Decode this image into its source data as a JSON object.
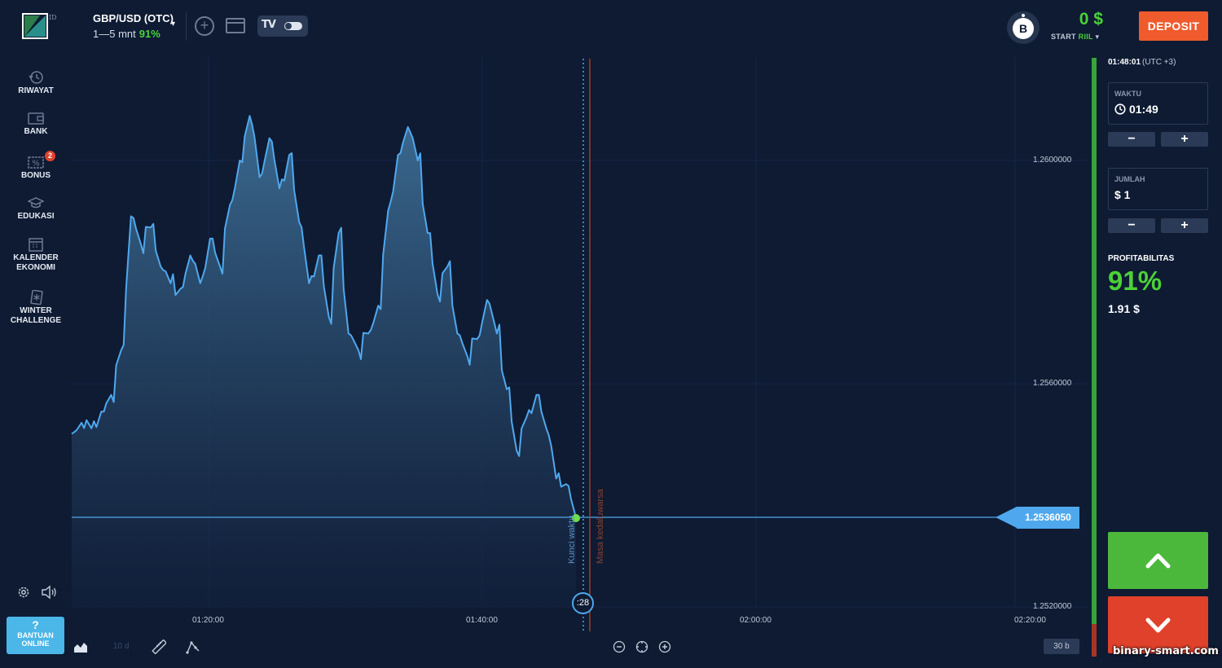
{
  "header": {
    "logo_suffix": "ID",
    "asset_name": "GBP/USD (OTC)",
    "asset_timeframe": "1—5 mnt",
    "asset_payout": "91%",
    "tv_logo": "TV",
    "balance_avatar": "B",
    "balance_amount": "0 $",
    "balance_account_prefix": "START",
    "balance_account_type": "RIIL",
    "deposit_label": "DEPOSIT"
  },
  "sidebar": {
    "items": [
      {
        "label": "RIWAYAT",
        "icon": "history-icon"
      },
      {
        "label": "BANK",
        "icon": "wallet-icon"
      },
      {
        "label": "BONUS",
        "icon": "percent-icon",
        "badge": "2"
      },
      {
        "label": "EDUKASI",
        "icon": "graduation-cap-icon"
      },
      {
        "label": "KALENDER EKONOMI",
        "icon": "calendar-icon"
      },
      {
        "label": "WINTER CHALLENGE",
        "icon": "snowflake-card-icon"
      }
    ],
    "help_symbol": "?",
    "help_label_1": "BANTUAN",
    "help_label_2": "ONLINE"
  },
  "chart": {
    "price_levels": [
      "1.2600000",
      "1.2560000",
      "1.2520000"
    ],
    "time_labels": [
      "01:20:00",
      "01:40:00",
      "02:00:00",
      "02:20:00"
    ],
    "current_price": "1.2536050",
    "timer": ":28",
    "lock_label": "Kunci waktu",
    "expiry_label": "Masa kedaluwarsa",
    "timeframe_label": "10 d",
    "candle_period": "30 b",
    "line_color": "#4fa8ee",
    "price_line_color": "#4fa8ee",
    "expiry_line_color": "#c0442a"
  },
  "chart_data": {
    "type": "area",
    "ylim": [
      1.252,
      1.2615
    ],
    "y_ticks": [
      1.26,
      1.256,
      1.252
    ],
    "x_ticks": [
      "01:20:00",
      "01:40:00",
      "02:00:00",
      "02:20:00"
    ],
    "series": [
      {
        "values": [
          1.2551,
          1.2553,
          1.2552,
          1.2555,
          1.2558,
          1.2566,
          1.259,
          1.2585,
          1.2588,
          1.2581,
          1.2578,
          1.2577,
          1.2583,
          1.2578,
          1.2586,
          1.2581,
          1.2592,
          1.26,
          1.2608,
          1.2597,
          1.2604,
          1.2595,
          1.2601,
          1.2589,
          1.2578,
          1.2583,
          1.2572,
          1.2587,
          1.2569,
          1.2566,
          1.2569,
          1.2574,
          1.2591,
          1.2601,
          1.2606,
          1.26,
          1.2587,
          1.2576,
          1.2581,
          1.2569,
          1.2565,
          1.2568,
          1.2575,
          1.2569,
          1.2559,
          1.2548,
          1.2554,
          1.2558,
          1.2552,
          1.2543,
          1.2542,
          1.2536
        ]
      }
    ]
  },
  "toolbar": {
    "chart_type_icon": "area-chart-icon",
    "draw_icon": "ruler-icon",
    "indicators_icon": "indicators-icon",
    "zoom_out_icon": "zoom-out-icon",
    "zoom_fit_icon": "zoom-fit-icon",
    "zoom_in_icon": "zoom-in-icon"
  },
  "panel": {
    "server_time": "01:48:01",
    "timezone": "(UTC +3)",
    "time_label": "WAKTU",
    "time_value": "01:49",
    "amount_label": "JUMLAH",
    "amount_value": "$ 1",
    "minus": "−",
    "plus": "+",
    "profit_label": "PROFITABILITAS",
    "profit_pct": "91%",
    "profit_amount": "1.91 $",
    "up_color": "#4cb83b",
    "down_color": "#e0412b"
  },
  "watermark": "binary-smart.com"
}
